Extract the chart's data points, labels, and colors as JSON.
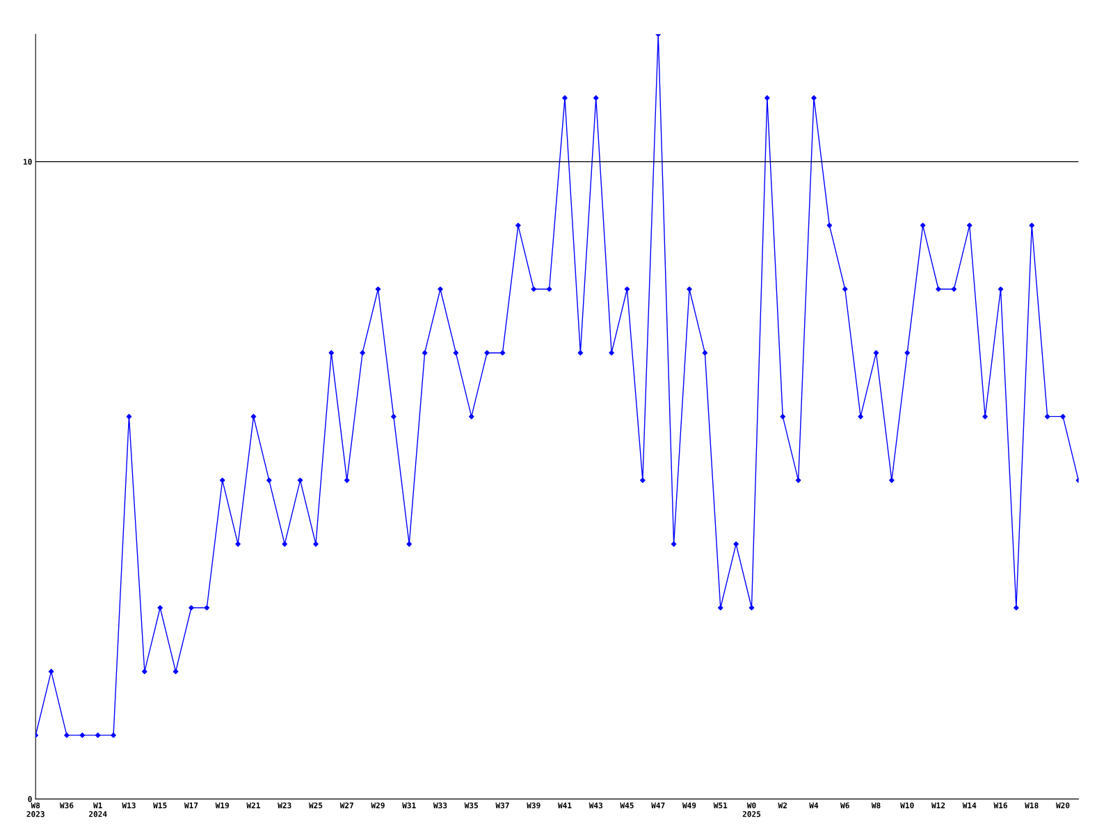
{
  "chart_data": {
    "type": "line",
    "categories": [
      "W8\n2023",
      null,
      "W36",
      null,
      "W1\n2024",
      null,
      "W13",
      null,
      "W15",
      null,
      "W17",
      null,
      "W19",
      null,
      "W21",
      null,
      "W23",
      null,
      "W25",
      null,
      "W27",
      null,
      "W29",
      null,
      "W31",
      null,
      "W33",
      null,
      "W35",
      null,
      "W37",
      null,
      "W39",
      null,
      "W41",
      null,
      "W43",
      null,
      "W45",
      null,
      "W47",
      null,
      "W49",
      null,
      "W51",
      null,
      "W0\n2025",
      null,
      "W2",
      null,
      "W4",
      null,
      "W6",
      null,
      "W8",
      null,
      "W10",
      null,
      "W12",
      null,
      "W14",
      null,
      "W16",
      null,
      "W18",
      null,
      "W20",
      null
    ],
    "series": [
      {
        "color": "#0000ff",
        "values": [
          1,
          2,
          1,
          1,
          1,
          1,
          6,
          2,
          3,
          2,
          3,
          3,
          5,
          4,
          6,
          5,
          4,
          5,
          4,
          7,
          5,
          7,
          8,
          6,
          4,
          7,
          8,
          7,
          6,
          7,
          7,
          9,
          8,
          8,
          11,
          7,
          11,
          7,
          8,
          5,
          12,
          4,
          8,
          7,
          3,
          4,
          3,
          11,
          6,
          5,
          11,
          9,
          8,
          6,
          7,
          5,
          7,
          9,
          8,
          8,
          9,
          6,
          8,
          3,
          9,
          6,
          6,
          5
        ]
      }
    ],
    "ylim": [
      0,
      12
    ],
    "yticks": [
      0,
      10
    ],
    "ref_lines": [
      {
        "axis": "y",
        "value": 10,
        "color": "#000000",
        "line_style": "solid"
      }
    ],
    "marker": "diamond",
    "line_style": "solid",
    "grid": false,
    "legend": false
  }
}
